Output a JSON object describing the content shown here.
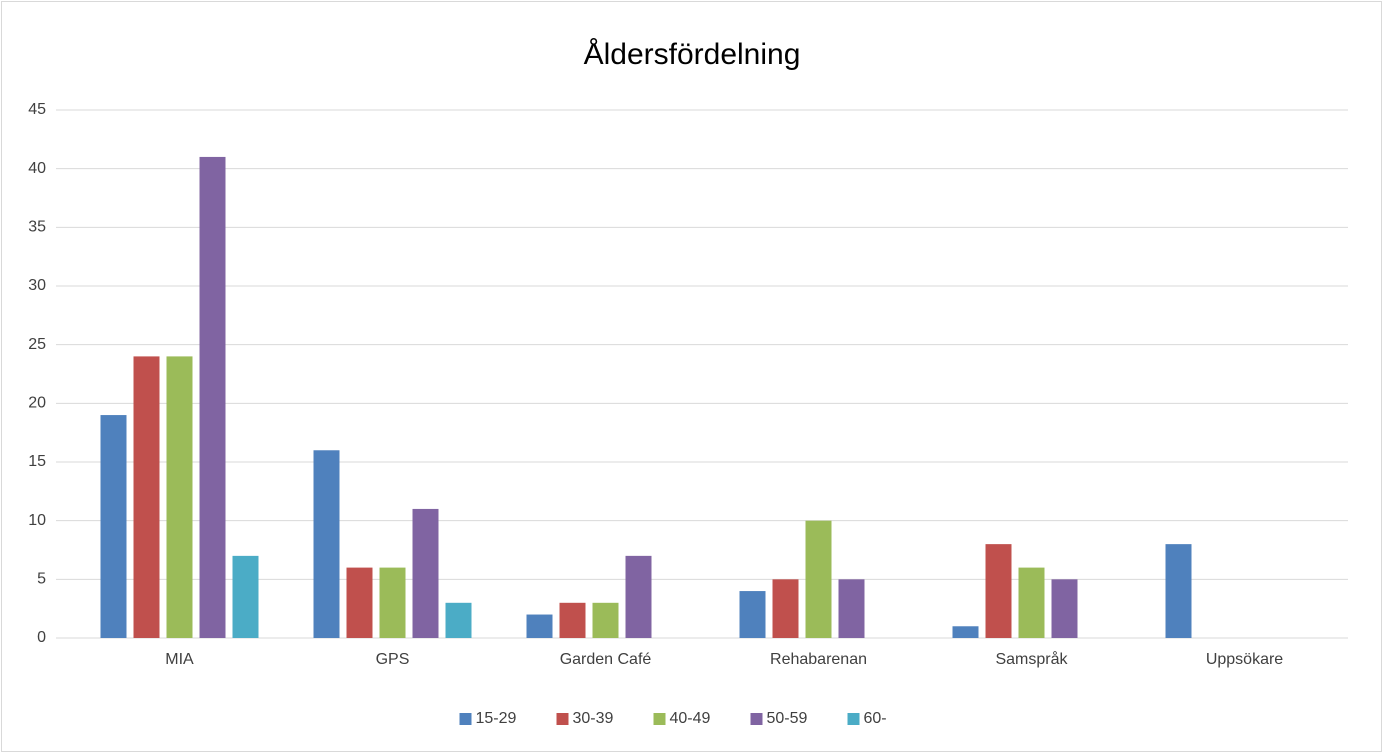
{
  "chart_data": {
    "type": "bar",
    "title": "Åldersfördelning",
    "categories": [
      "MIA",
      "GPS",
      "Garden Café",
      "Rehabarenan",
      "Samspråk",
      "Uppsökare"
    ],
    "series": [
      {
        "name": "15-29",
        "color": "#4f81bd",
        "values": [
          19,
          16,
          2,
          4,
          1,
          8
        ]
      },
      {
        "name": "30-39",
        "color": "#c0504d",
        "values": [
          24,
          6,
          3,
          5,
          8,
          null
        ]
      },
      {
        "name": "40-49",
        "color": "#9bbb59",
        "values": [
          24,
          6,
          3,
          10,
          6,
          null
        ]
      },
      {
        "name": "50-59",
        "color": "#8064a2",
        "values": [
          41,
          11,
          7,
          5,
          5,
          null
        ]
      },
      {
        "name": "60-",
        "color": "#4bacc6",
        "values": [
          7,
          3,
          null,
          null,
          null,
          null
        ]
      }
    ],
    "ylim": [
      0,
      45
    ],
    "yticks": [
      0,
      5,
      10,
      15,
      20,
      25,
      30,
      35,
      40,
      45
    ],
    "grid": true,
    "legend": "bottom"
  }
}
